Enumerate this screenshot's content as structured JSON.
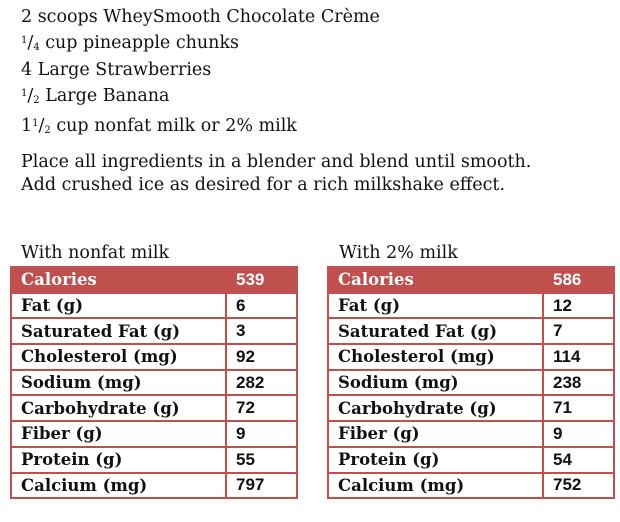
{
  "ingredients": [
    {
      "pre": "",
      "num": "",
      "den": "",
      "text": "2 scoops WheySmooth Chocolate Crème"
    },
    {
      "pre": "",
      "num": "1",
      "den": "4",
      "text": " cup pineapple chunks"
    },
    {
      "pre": "",
      "num": "",
      "den": "",
      "text": "4 Large Strawberries"
    },
    {
      "pre": "",
      "num": "1",
      "den": "2",
      "text": " Large Banana"
    },
    {
      "pre": "1",
      "num": "1",
      "den": "2",
      "text": " cup nonfat milk or 2% milk"
    }
  ],
  "instructions": [
    "Place all ingredients in a blender and blend until smooth.",
    "Add crushed ice as desired for a rich milkshake effect."
  ],
  "accent_color": "#c0504d",
  "tables": [
    {
      "label": "With nonfat milk",
      "rows": [
        {
          "name": "Calories",
          "value": "539"
        },
        {
          "name": "Fat (g)",
          "value": "6"
        },
        {
          "name": "Saturated Fat (g)",
          "value": "3"
        },
        {
          "name": "Cholesterol (mg)",
          "value": "92"
        },
        {
          "name": "Sodium (mg)",
          "value": "282"
        },
        {
          "name": "Carbohydrate (g)",
          "value": "72"
        },
        {
          "name": "Fiber (g)",
          "value": "9"
        },
        {
          "name": "Protein (g)",
          "value": "55"
        },
        {
          "name": "Calcium (mg)",
          "value": "797"
        }
      ]
    },
    {
      "label": "With 2% milk",
      "rows": [
        {
          "name": "Calories",
          "value": "586"
        },
        {
          "name": "Fat (g)",
          "value": "12"
        },
        {
          "name": "Saturated Fat (g)",
          "value": "7"
        },
        {
          "name": "Cholesterol (mg)",
          "value": "114"
        },
        {
          "name": "Sodium (mg)",
          "value": "238"
        },
        {
          "name": "Carbohydrate (g)",
          "value": "71"
        },
        {
          "name": "Fiber (g)",
          "value": "9"
        },
        {
          "name": "Protein (g)",
          "value": "54"
        },
        {
          "name": "Calcium (mg)",
          "value": "752"
        }
      ]
    }
  ]
}
